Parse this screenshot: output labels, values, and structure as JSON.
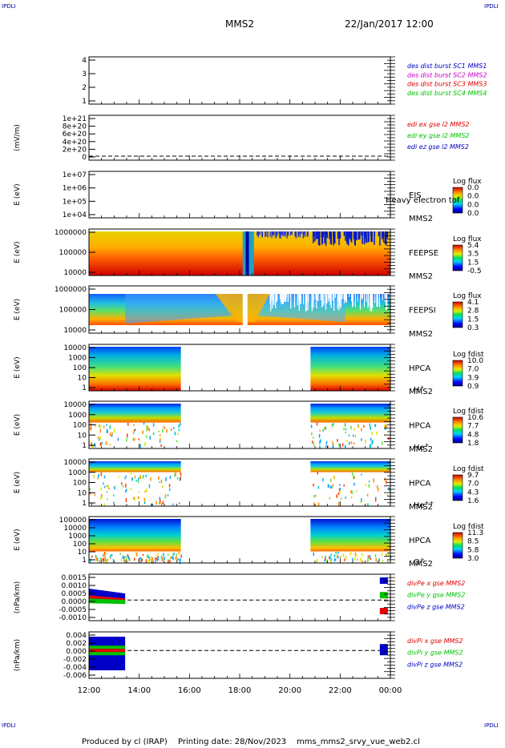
{
  "header": {
    "left_tag": "IPDLI",
    "right_tag": "IPDLI",
    "title": "MMS2",
    "date": "22/Jan/2017 12:00"
  },
  "footer": {
    "left_tag": "IPDLI",
    "right_tag": "IPDLI",
    "produced": "Produced by cl (IRAP)",
    "printing": "Printing date: 28/Nov/2023",
    "filename": "mms_mms2_srvy_vue_web2.cl"
  },
  "x_axis": {
    "ticks": [
      "12:00",
      "14:00",
      "16:00",
      "18:00",
      "20:00",
      "22:00",
      "00:00"
    ]
  },
  "colors": {
    "blue": "#0000c8",
    "magenta": "#c800c8",
    "red": "#e00000",
    "green": "#00c000"
  },
  "chart_data": [
    {
      "id": "p1",
      "type": "line",
      "yticks": [
        "4",
        "3",
        "2",
        "1"
      ],
      "legend": [
        {
          "text": "des dist burst SC1 MMS1",
          "color": "#0000c8"
        },
        {
          "text": "des dist burst SC2 MMS2",
          "color": "#c800c8"
        },
        {
          "text": "des dist burst SC3 MMS3",
          "color": "#e00000"
        },
        {
          "text": "des dist burst SC4 MMS4",
          "color": "#00c000"
        }
      ]
    },
    {
      "id": "p2",
      "type": "line",
      "ylabel": "(mV/m)",
      "yticks": [
        "1e+21",
        "8e+20",
        "6e+20",
        "4e+20",
        "2e+20",
        "0"
      ],
      "legend": [
        {
          "text": "edi ex gse l2 MMS2",
          "color": "#e00000"
        },
        {
          "text": "edi ey gse l2 MMS2",
          "color": "#00c000"
        },
        {
          "text": "edi ez gse l2 MMS2",
          "color": "#0000c8"
        }
      ]
    },
    {
      "id": "p3",
      "type": "heatmap",
      "ylabel": "E (eV)",
      "yticks": [
        "1e+07",
        "1e+06",
        "1e+05",
        "1e+04"
      ],
      "instrument": "EIS",
      "overlay": "Heavy electron tof",
      "sc": "MMS2",
      "cbar_title": "Log flux",
      "cbar_ticks": [
        "0.0",
        "0.0",
        "0.0",
        "0.0"
      ]
    },
    {
      "id": "p4",
      "type": "heatmap",
      "ylabel": "E (eV)",
      "yticks": [
        "1000000",
        "100000",
        "10000"
      ],
      "instrument": "FEEPSE",
      "sc": "MMS2",
      "cbar_title": "Log flux",
      "cbar_ticks": [
        "5.4",
        "3.5",
        "1.5",
        "-0.5"
      ]
    },
    {
      "id": "p5",
      "type": "heatmap",
      "ylabel": "E (eV)",
      "yticks": [
        "1000000",
        "100000",
        "10000"
      ],
      "instrument": "FEEPSI",
      "sc": "MMS2",
      "cbar_title": "Log flux",
      "cbar_ticks": [
        "4.1",
        "2.8",
        "1.5",
        "0.3"
      ]
    },
    {
      "id": "p6",
      "type": "heatmap",
      "ylabel": "E (eV)",
      "yticks": [
        "10000",
        "1000",
        "100",
        "10",
        "1"
      ],
      "instrument": "HPCA",
      "sc": "MMS2",
      "species": "H",
      "species_sup": "+",
      "cbar_title": "Log fdist",
      "cbar_ticks": [
        "10.0",
        "7.0",
        "3.9",
        "0.9"
      ]
    },
    {
      "id": "p7",
      "type": "heatmap",
      "ylabel": "E (eV)",
      "yticks": [
        "10000",
        "1000",
        "100",
        "10",
        "1"
      ],
      "instrument": "HPCA",
      "sc": "MMS2",
      "species": "He",
      "species_sup": "+",
      "cbar_title": "Log fdist",
      "cbar_ticks": [
        "10.6",
        "7.7",
        "4.8",
        "1.8"
      ]
    },
    {
      "id": "p8",
      "type": "heatmap",
      "ylabel": "E (eV)",
      "yticks": [
        "10000",
        "1000",
        "100",
        "10",
        "1"
      ],
      "instrument": "HPCA",
      "sc": "MMS2",
      "species": "He",
      "species_sup": "++",
      "cbar_title": "Log fdist",
      "cbar_ticks": [
        "9.7",
        "7.0",
        "4.3",
        "1.6"
      ]
    },
    {
      "id": "p9",
      "type": "heatmap",
      "ylabel": "E (eV)",
      "yticks": [
        "100000",
        "10000",
        "1000",
        "100",
        "10",
        "1"
      ],
      "instrument": "HPCA",
      "sc": "MMS2",
      "species": "O",
      "species_sup": "+",
      "cbar_title": "Log fdist",
      "cbar_ticks": [
        "11.3",
        "8.5",
        "5.8",
        "3.0"
      ]
    },
    {
      "id": "p10",
      "type": "line",
      "ylabel": "(nPa/km)",
      "yticks": [
        "0.0015",
        "0.0010",
        "0.0005",
        "0.0000",
        "-0.0005",
        "-0.0010"
      ],
      "legend": [
        {
          "text": "divPe x gse MMS2",
          "color": "#e00000"
        },
        {
          "text": "divPe y gse MMS2",
          "color": "#00c000"
        },
        {
          "text": "divPe z gse MMS2",
          "color": "#0000c8"
        }
      ]
    },
    {
      "id": "p11",
      "type": "line",
      "ylabel": "(nPa/km)",
      "yticks": [
        "0.004",
        "0.002",
        "0.000",
        "-0.002",
        "-0.004",
        "-0.006"
      ],
      "legend": [
        {
          "text": "divPi x gse MMS2",
          "color": "#e00000"
        },
        {
          "text": "divPi y gse MMS2",
          "color": "#00c000"
        },
        {
          "text": "divPi z gse MMS2",
          "color": "#0000c8"
        }
      ]
    }
  ]
}
